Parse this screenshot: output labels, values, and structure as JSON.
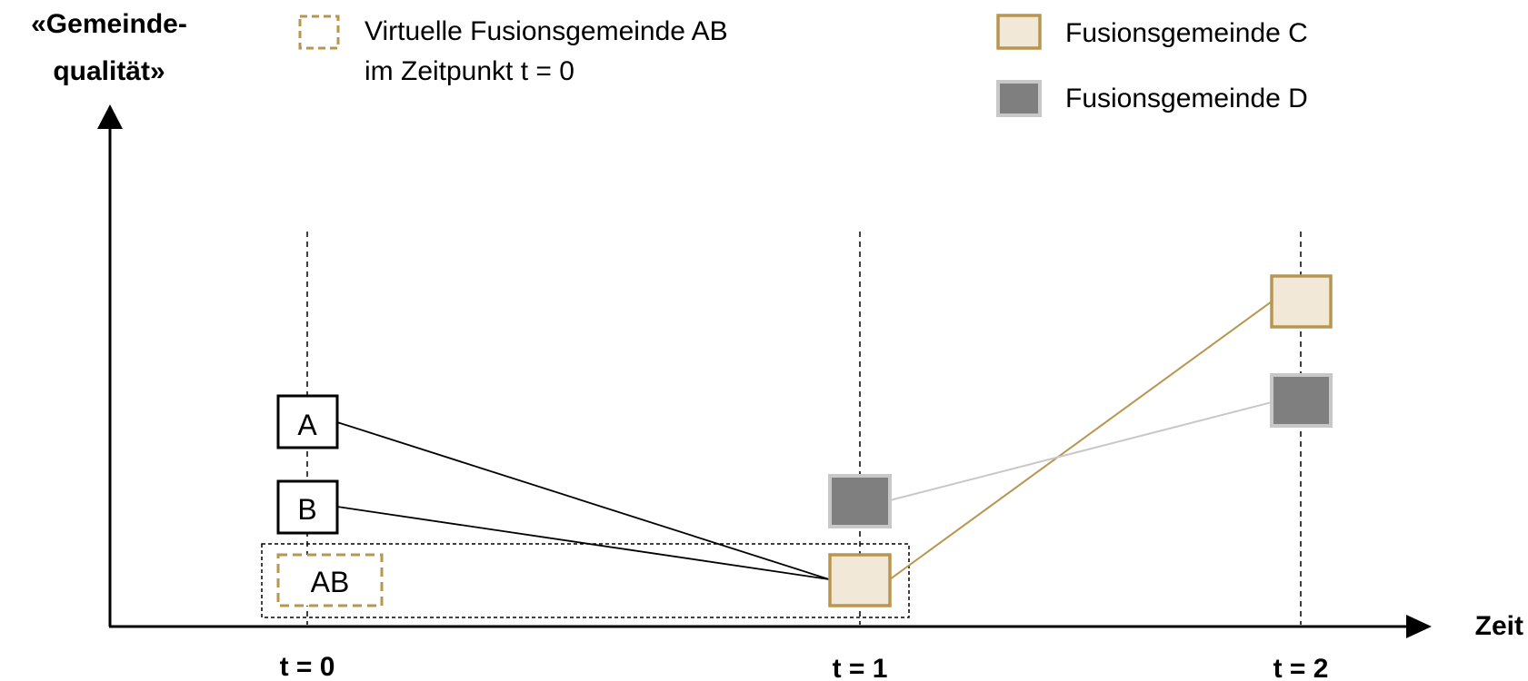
{
  "axes": {
    "y_label_line1": "«Gemeinde-",
    "y_label_line2": "qualität»",
    "x_label": "Zeit"
  },
  "time_points": [
    "t = 0",
    "t = 1",
    "t = 2"
  ],
  "legend": {
    "virtual_line1": "Virtuelle Fusionsgemeinde AB",
    "virtual_line2": "im Zeitpunkt t = 0",
    "fusion_c": "Fusionsgemeinde C",
    "fusion_d": "Fusionsgemeinde D"
  },
  "nodes": {
    "a": "A",
    "b": "B",
    "ab": "AB"
  },
  "colors": {
    "gold": "#b8964f",
    "beige": "#f1e8d8",
    "dark_gray": "#7f7f7f",
    "light_gray": "#c8c8c8",
    "black": "#000000"
  }
}
